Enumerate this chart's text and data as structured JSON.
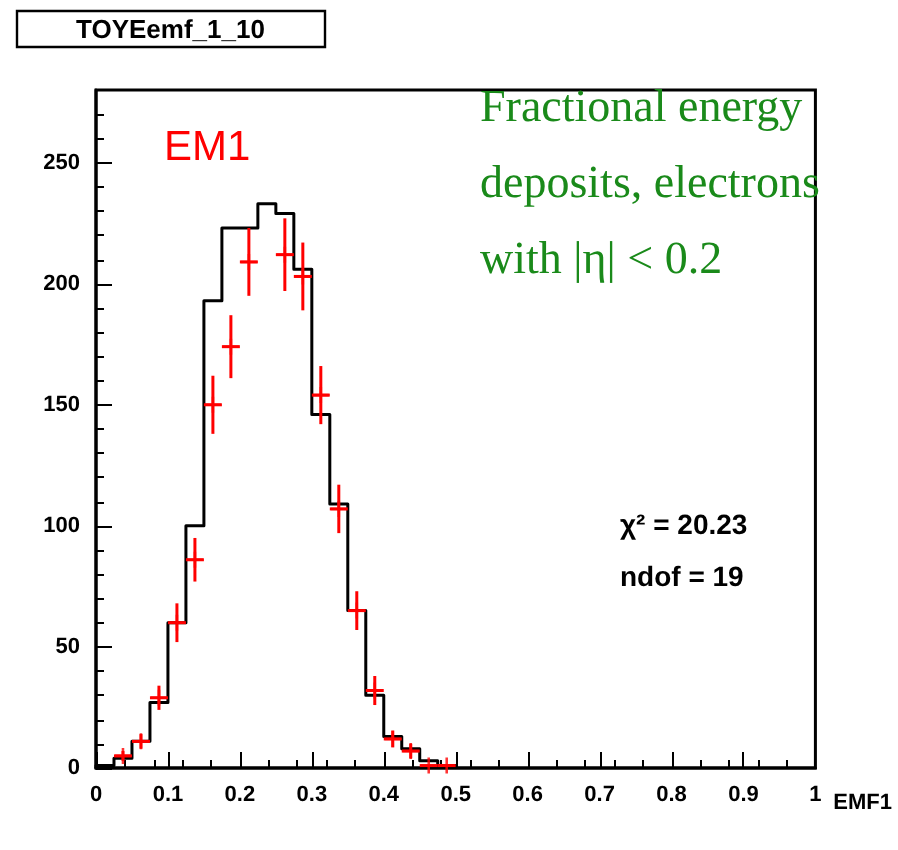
{
  "chart_data": {
    "type": "histogram",
    "title": "TOYEemf_1_10",
    "xlabel": "EMF1",
    "annotations": [
      "EM1",
      "Fractional energy deposits, electrons with |η| < 0.2",
      "χ² = 20.23",
      "ndof = 19"
    ],
    "bins": [
      0,
      0.025,
      0.05,
      0.075,
      0.1,
      0.125,
      0.15,
      0.175,
      0.2,
      0.225,
      0.25,
      0.275,
      0.3,
      0.325,
      0.35,
      0.375,
      0.4,
      0.425,
      0.45,
      0.475,
      0.5
    ],
    "series": [
      {
        "color": "#000000",
        "values": [
          1,
          4,
          11,
          27,
          60,
          100,
          193,
          223,
          223,
          233,
          229,
          206,
          146,
          109,
          65,
          30,
          13,
          8,
          3,
          1
        ]
      },
      {
        "type": "scatter",
        "color": "#ff0000",
        "marker": "cross",
        "x": [
          0.0375,
          0.0625,
          0.0875,
          0.1125,
          0.1375,
          0.1625,
          0.1875,
          0.2125,
          0.2375,
          0.2625,
          0.2875,
          0.3125,
          0.3375,
          0.3625,
          0.3875,
          0.4125,
          0.4375,
          0.4625,
          0.4875
        ],
        "values": [
          5,
          11,
          29,
          60,
          86,
          150,
          174,
          209,
          null,
          212,
          203,
          154,
          107,
          65,
          32,
          12,
          7,
          1,
          1
        ],
        "errors": [
          2,
          3,
          5,
          8,
          9,
          12,
          13,
          14,
          null,
          15,
          14,
          12,
          10,
          8,
          6,
          3.5,
          3,
          null,
          null
        ],
        "xerrors": [
          0.0125,
          0.0125,
          0.0125,
          0.0125,
          0.0125,
          0.0125,
          0.0125,
          0.0125,
          null,
          0.0125,
          0.0125,
          0.0125,
          0.0125,
          0.0125,
          0.0125,
          0.0125,
          0.0125,
          0.0125,
          0.0125
        ]
      }
    ],
    "xlim": [
      0,
      1
    ],
    "xticks": [
      0,
      0.1,
      0.2,
      0.3,
      0.4,
      0.5,
      0.6,
      0.7,
      0.8,
      0.9,
      1
    ],
    "ylim": [
      0,
      280
    ],
    "yticks": [
      0,
      50,
      100,
      150,
      200,
      250
    ],
    "grid": false
  }
}
